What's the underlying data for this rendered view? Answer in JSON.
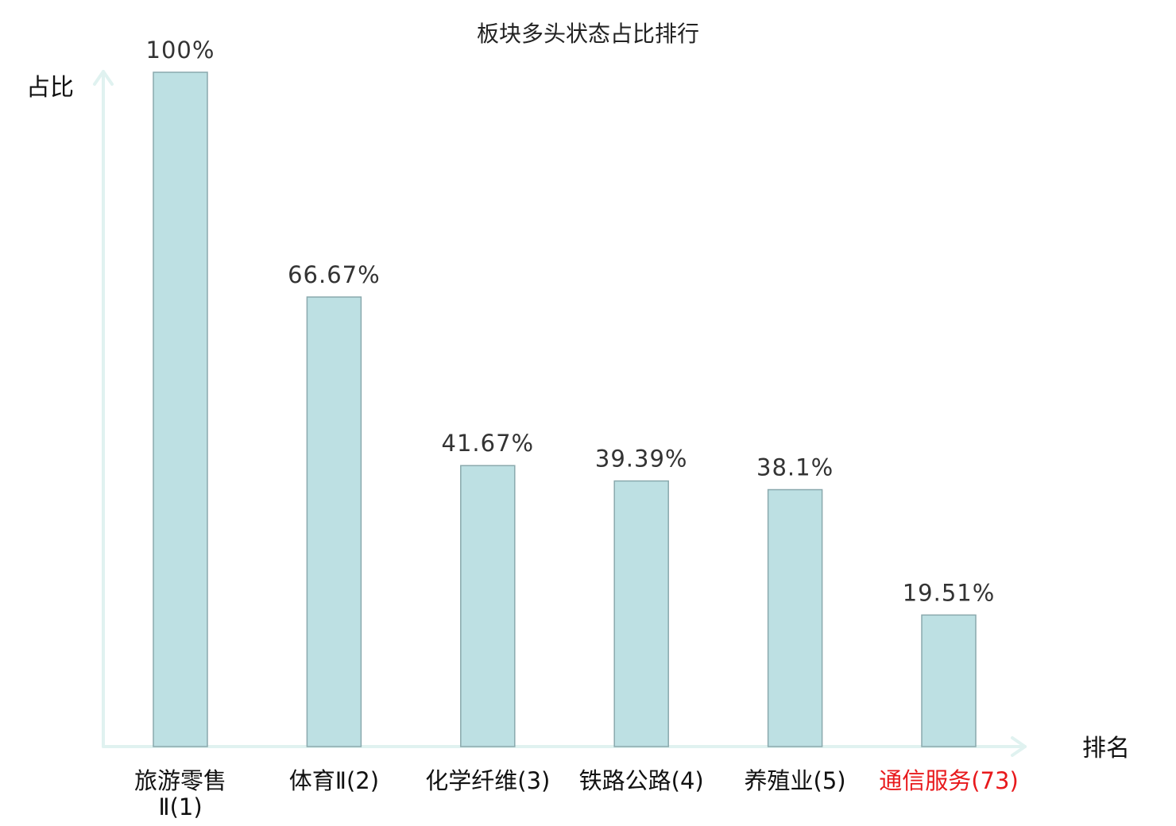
{
  "chart_data": {
    "type": "bar",
    "title": "板块多头状态占比排行",
    "ylabel": "占比",
    "xlabel": "排名",
    "categories": [
      [
        "旅游零售",
        "Ⅱ(1)"
      ],
      [
        "体育Ⅱ(2)"
      ],
      [
        "化学纤维(3)"
      ],
      [
        "铁路公路(4)"
      ],
      [
        "养殖业(5)"
      ],
      [
        "通信服务(73)"
      ]
    ],
    "values": [
      100,
      66.67,
      41.67,
      39.39,
      38.1,
      19.51
    ],
    "value_labels": [
      "100%",
      "66.67%",
      "41.67%",
      "39.39%",
      "38.1%",
      "19.51%"
    ],
    "highlight_index": 5,
    "ylim": [
      0,
      100
    ],
    "grid": false,
    "legend": "none"
  },
  "colors": {
    "bar_fill": "#bde0e3",
    "bar_stroke": "#8aa9ad",
    "axis": "#e0f2f0",
    "highlight_text": "#e8191c"
  }
}
